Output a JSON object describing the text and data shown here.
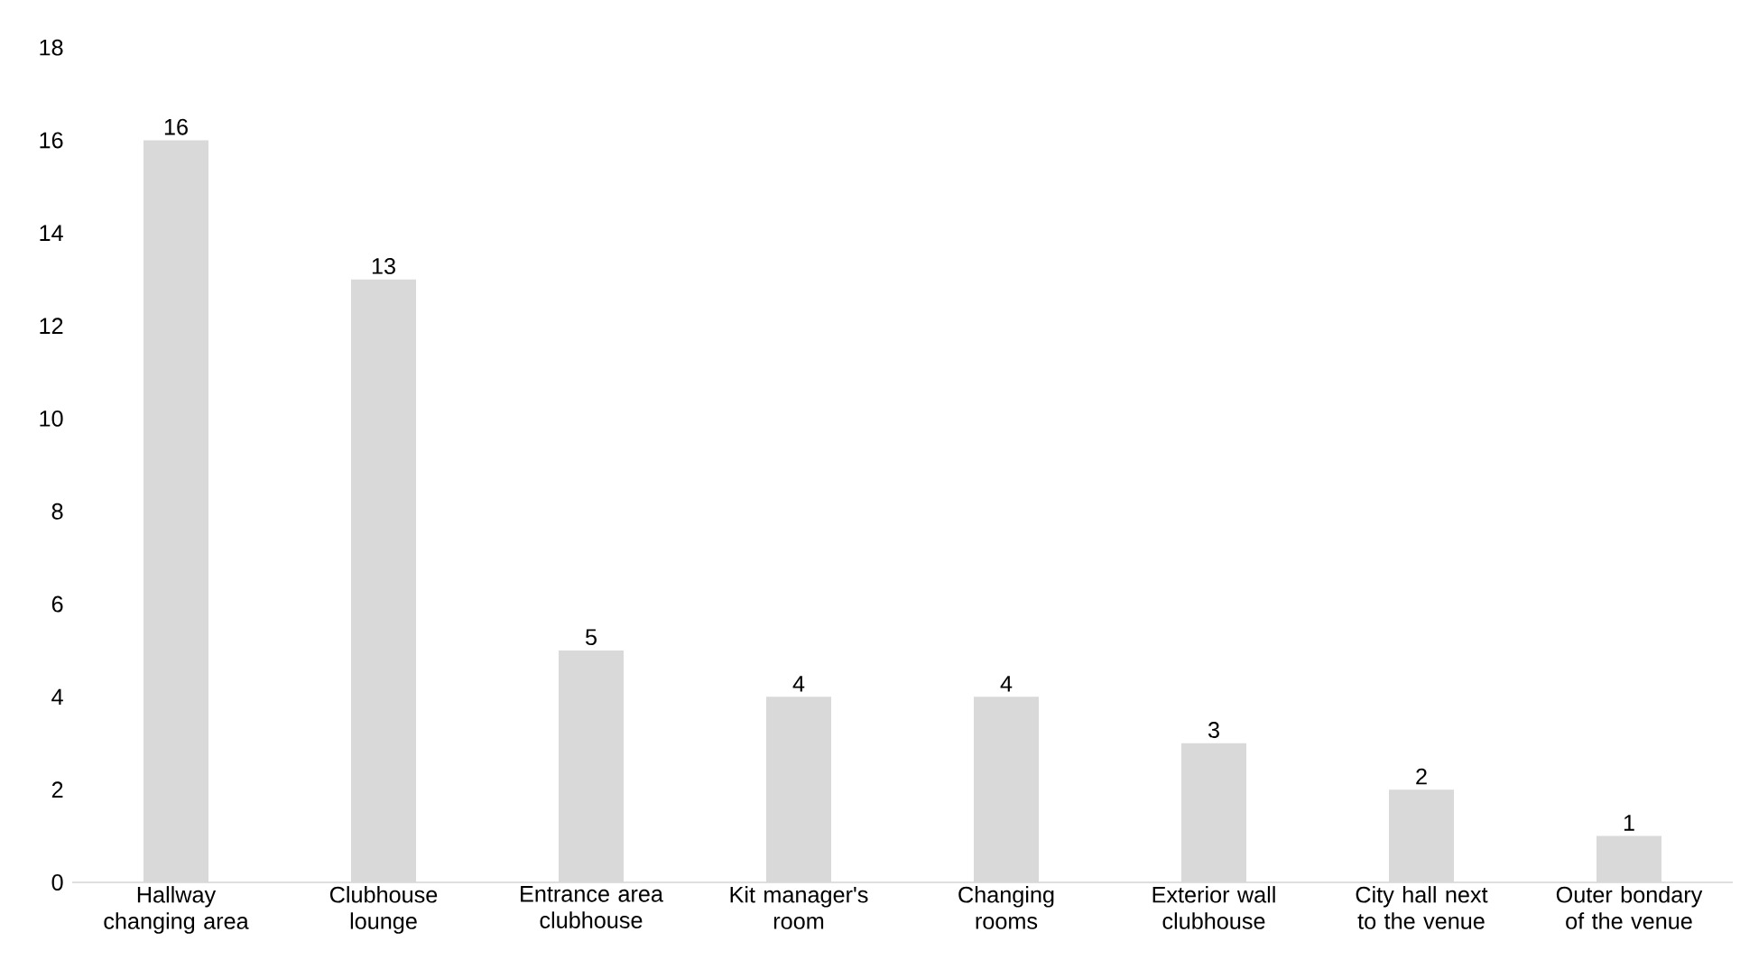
{
  "chart_data": {
    "type": "bar",
    "categories": [
      "Hallway changing area",
      "Clubhouse lounge",
      "Entrance area clubhouse",
      "Kit manager's room",
      "Changing rooms",
      "Exterior wall clubhouse",
      "City hall next to the venue",
      "Outer bondary of the venue"
    ],
    "values": [
      16,
      13,
      5,
      4,
      4,
      3,
      2,
      1
    ],
    "color": "#d9d9d9",
    "ylim": [
      0,
      18
    ],
    "yticks": [
      0,
      2,
      4,
      6,
      8,
      10,
      12,
      14,
      16,
      18
    ],
    "data_labels": true,
    "grid": false
  }
}
